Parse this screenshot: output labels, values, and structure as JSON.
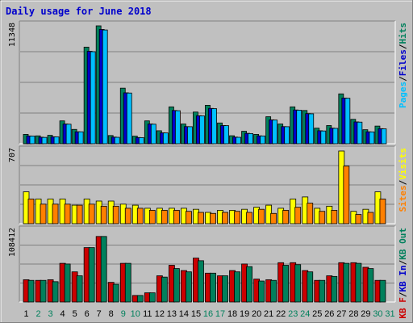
{
  "chart_data": [
    {
      "type": "bar",
      "title": "Daily usage for June 2018",
      "categories": [
        "1",
        "2",
        "3",
        "4",
        "5",
        "6",
        "7",
        "8",
        "9",
        "10",
        "11",
        "12",
        "13",
        "14",
        "15",
        "16",
        "17",
        "18",
        "19",
        "20",
        "21",
        "22",
        "23",
        "24",
        "25",
        "26",
        "27",
        "28",
        "29",
        "30",
        "31"
      ],
      "weekend_days": [
        "2",
        "3",
        "9",
        "10",
        "16",
        "17",
        "23",
        "24",
        "30",
        "31"
      ],
      "colors": {
        "background": "#c0c0c0",
        "title": "#0000cc",
        "gridline": "#808080",
        "weekday_label": "#000000",
        "weekend_label": "#00805c",
        "hits": "#00805c",
        "files": "#0000cc",
        "pages": "#00c0ff",
        "visits": "#ffff00",
        "sites": "#ff8000",
        "kb_f": "#cc0000",
        "kb_in": "#0000cc",
        "kb_out": "#00805c"
      },
      "panels": [
        {
          "id": "hits-files-pages",
          "ymax_label": "11348",
          "ylim": [
            0,
            11348
          ],
          "legend": [
            {
              "name": "Pages",
              "color_key": "pages"
            },
            {
              "name": "Files",
              "color_key": "files"
            },
            {
              "name": "Hits",
              "color_key": "hits"
            }
          ],
          "legend_separator": "/",
          "series": [
            {
              "name": "Hits",
              "values": [
                900,
                760,
                810,
                2200,
                1380,
                9300,
                11348,
                790,
                5350,
                730,
                2200,
                1250,
                3550,
                1900,
                3050,
                3700,
                2000,
                770,
                1200,
                900,
                2600,
                1900,
                3550,
                3200,
                1500,
                1750,
                4800,
                2350,
                1350,
                1700,
                0
              ]
            },
            {
              "name": "Files",
              "values": [
                750,
                630,
                670,
                1900,
                1150,
                8900,
                11000,
                640,
                4900,
                600,
                1900,
                1050,
                3200,
                1650,
                2700,
                3400,
                1750,
                640,
                1000,
                760,
                2300,
                1650,
                3250,
                2900,
                1250,
                1500,
                4400,
                2100,
                1150,
                1450,
                0
              ]
            },
            {
              "name": "Pages",
              "values": [
                740,
                610,
                660,
                1880,
                1150,
                8860,
                10950,
                620,
                4880,
                590,
                1880,
                1040,
                3180,
                1640,
                2680,
                3380,
                1740,
                620,
                980,
                750,
                2280,
                1640,
                3230,
                2880,
                1230,
                1480,
                4380,
                2080,
                1140,
                1430,
                0
              ]
            }
          ]
        },
        {
          "id": "visits-sites",
          "ymax_label": "707",
          "ylim": [
            0,
            707
          ],
          "legend": [
            {
              "name": "Sites",
              "color_key": "sites"
            },
            {
              "name": "Visits",
              "color_key": "visits"
            }
          ],
          "legend_separator": "/",
          "series": [
            {
              "name": "Visits",
              "values": [
                310,
                240,
                240,
                240,
                180,
                240,
                220,
                220,
                190,
                180,
                150,
                150,
                150,
                150,
                140,
                110,
                130,
                130,
                140,
                160,
                180,
                150,
                240,
                260,
                150,
                170,
                707,
                120,
                140,
                310,
                0
              ]
            },
            {
              "name": "Sites",
              "values": [
                240,
                190,
                190,
                190,
                180,
                190,
                170,
                170,
                150,
                150,
                130,
                130,
                130,
                120,
                110,
                100,
                110,
                120,
                110,
                140,
                100,
                130,
                160,
                200,
                120,
                130,
                560,
                90,
                110,
                240,
                0
              ]
            }
          ]
        },
        {
          "id": "kbytes",
          "ymax_label": "108412",
          "ylim": [
            0,
            108412
          ],
          "legend": [
            {
              "name": "KB F",
              "color_key": "kb_f"
            },
            {
              "name": "KB In",
              "color_key": "kb_in"
            },
            {
              "name": "KB Out",
              "color_key": "kb_out"
            }
          ],
          "legend_separator": "/",
          "series": [
            {
              "name": "KB F",
              "values": [
                34000,
                33000,
                34000,
                59000,
                46000,
                83000,
                100000,
                30000,
                59000,
                10000,
                14000,
                40000,
                56000,
                48000,
                67000,
                44000,
                40000,
                48000,
                58000,
                35000,
                34000,
                60000,
                60000,
                48000,
                33000,
                40000,
                60000,
                60000,
                53000,
                33000,
                0
              ]
            },
            {
              "name": "KB In",
              "values": [
                0,
                0,
                0,
                0,
                0,
                0,
                0,
                0,
                0,
                0,
                0,
                0,
                0,
                0,
                0,
                0,
                0,
                0,
                0,
                0,
                0,
                0,
                0,
                0,
                0,
                0,
                0,
                0,
                0,
                0,
                0
              ]
            },
            {
              "name": "KB Out",
              "values": [
                33000,
                33000,
                31000,
                58000,
                40000,
                83000,
                100000,
                27000,
                59000,
                10000,
                14000,
                38000,
                51000,
                46000,
                63000,
                44000,
                40000,
                46000,
                54000,
                32000,
                33000,
                56000,
                57000,
                46000,
                33000,
                39000,
                59000,
                59000,
                51000,
                33000,
                0
              ]
            }
          ]
        }
      ]
    }
  ]
}
